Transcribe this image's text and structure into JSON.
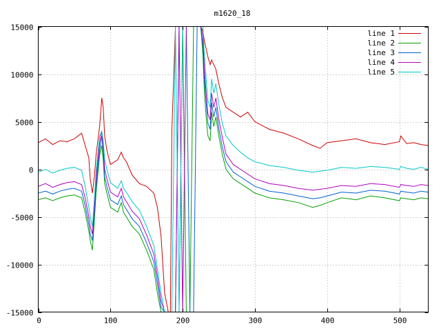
{
  "chart_data": {
    "type": "line",
    "title": "m1620_18",
    "xlabel": "",
    "ylabel": "",
    "xlim": [
      0,
      540
    ],
    "ylim": [
      -15000,
      15000
    ],
    "xticks": [
      0,
      100,
      200,
      300,
      400,
      500
    ],
    "yticks": [
      -15000,
      -10000,
      -5000,
      0,
      5000,
      10000,
      15000
    ],
    "grid": true,
    "legend_position": "top-right",
    "x": [
      0,
      10,
      20,
      30,
      40,
      50,
      60,
      65,
      70,
      72,
      75,
      78,
      80,
      85,
      88,
      90,
      92,
      95,
      100,
      110,
      115,
      118,
      122,
      130,
      140,
      150,
      160,
      165,
      170,
      175,
      180,
      183,
      185,
      190,
      195,
      200,
      205,
      210,
      215,
      220,
      225,
      228,
      230,
      233,
      235,
      238,
      240,
      243,
      246,
      250,
      255,
      260,
      270,
      280,
      290,
      300,
      320,
      340,
      360,
      380,
      390,
      400,
      420,
      440,
      460,
      480,
      500,
      502,
      510,
      520,
      530,
      540
    ],
    "series": [
      {
        "name": "line 1",
        "color": "#cc0000",
        "values": [
          2800,
          3200,
          2600,
          3000,
          2900,
          3200,
          3800,
          2500,
          1200,
          -1000,
          -2500,
          -500,
          1500,
          4500,
          7500,
          6500,
          3500,
          2000,
          500,
          1000,
          1800,
          1200,
          800,
          -600,
          -1500,
          -1800,
          -2500,
          -4000,
          -7000,
          -13000,
          -15000,
          -15000,
          4000,
          15000,
          15000,
          15000,
          15000,
          15000,
          15000,
          15000,
          15000,
          14500,
          13500,
          12500,
          11800,
          11000,
          11500,
          11000,
          10500,
          9000,
          7500,
          6500,
          6000,
          5500,
          6000,
          5000,
          4200,
          3800,
          3200,
          2500,
          2200,
          2800,
          3000,
          3200,
          2800,
          2600,
          2900,
          3500,
          2700,
          2800,
          2600,
          2500
        ]
      },
      {
        "name": "line 2",
        "color": "#00a000",
        "values": [
          -3200,
          -3000,
          -3300,
          -3000,
          -2800,
          -2700,
          -3000,
          -4500,
          -6500,
          -7500,
          -8500,
          -5000,
          -2500,
          1500,
          2500,
          1000,
          -1500,
          -2500,
          -4000,
          -4500,
          -3500,
          -4500,
          -5000,
          -6000,
          -6800,
          -8500,
          -10500,
          -13000,
          -15000,
          -15000,
          -15000,
          -15000,
          -15000,
          -15000,
          -15000,
          15000,
          -15000,
          -15000,
          15000,
          15000,
          15000,
          12000,
          8000,
          5000,
          3500,
          3000,
          6000,
          4500,
          5500,
          3500,
          1500,
          0,
          -1000,
          -1500,
          -2000,
          -2500,
          -3000,
          -3200,
          -3500,
          -4000,
          -3800,
          -3500,
          -3000,
          -3200,
          -2800,
          -3000,
          -3300,
          -3000,
          -3100,
          -3200,
          -3000,
          -3100
        ]
      },
      {
        "name": "line 3",
        "color": "#0060d0",
        "values": [
          -2500,
          -2300,
          -2600,
          -2300,
          -2100,
          -2000,
          -2300,
          -3800,
          -5800,
          -6800,
          -7500,
          -4200,
          -1800,
          2000,
          3500,
          1800,
          -800,
          -1800,
          -3200,
          -3700,
          -2800,
          -3700,
          -4200,
          -5200,
          -6000,
          -7700,
          -9700,
          -12000,
          -14500,
          -15000,
          -15000,
          -15000,
          -15000,
          -15000,
          15000,
          15000,
          15000,
          -15000,
          -15000,
          15000,
          15000,
          13000,
          9500,
          6500,
          4800,
          4200,
          7000,
          5500,
          6500,
          4300,
          2300,
          800,
          -300,
          -800,
          -1300,
          -1800,
          -2300,
          -2500,
          -2800,
          -3100,
          -3000,
          -2800,
          -2400,
          -2500,
          -2200,
          -2300,
          -2600,
          -2300,
          -2400,
          -2500,
          -2300,
          -2400
        ]
      },
      {
        "name": "line 4",
        "color": "#b000c0",
        "values": [
          -1800,
          -1500,
          -1900,
          -1600,
          -1400,
          -1300,
          -1600,
          -3000,
          -5000,
          -6000,
          -6800,
          -3500,
          -1000,
          2800,
          4000,
          2500,
          0,
          -1000,
          -2400,
          -2900,
          -2000,
          -2900,
          -3400,
          -4400,
          -5200,
          -6900,
          -8900,
          -11200,
          -13800,
          -15000,
          -15000,
          -15000,
          -15000,
          -15000,
          15000,
          -15000,
          15000,
          15000,
          15000,
          15000,
          15000,
          14000,
          10500,
          7500,
          5800,
          5200,
          8000,
          6500,
          7500,
          5300,
          3300,
          1600,
          500,
          0,
          -500,
          -1000,
          -1500,
          -1700,
          -2000,
          -2200,
          -2100,
          -2000,
          -1700,
          -1800,
          -1500,
          -1600,
          -1900,
          -1600,
          -1700,
          -1800,
          -1600,
          -1700
        ]
      },
      {
        "name": "line 5",
        "color": "#00c8c8",
        "values": [
          -300,
          0,
          -400,
          -100,
          100,
          200,
          -100,
          -1800,
          -4000,
          -5000,
          -6000,
          -2800,
          -200,
          3500,
          4000,
          3000,
          1000,
          0,
          -1400,
          -2000,
          -1200,
          -2000,
          -2400,
          -3400,
          -4300,
          -6000,
          -8000,
          -10400,
          -13000,
          -15000,
          -15000,
          -15000,
          -15000,
          15000,
          -15000,
          15000,
          15000,
          15000,
          15000,
          15000,
          15000,
          15000,
          12000,
          9000,
          7200,
          6500,
          9500,
          8000,
          9000,
          6800,
          4800,
          3500,
          2500,
          1800,
          1200,
          800,
          400,
          200,
          -100,
          -300,
          -200,
          -100,
          200,
          100,
          300,
          200,
          0,
          300,
          100,
          0,
          200,
          0
        ]
      }
    ]
  }
}
